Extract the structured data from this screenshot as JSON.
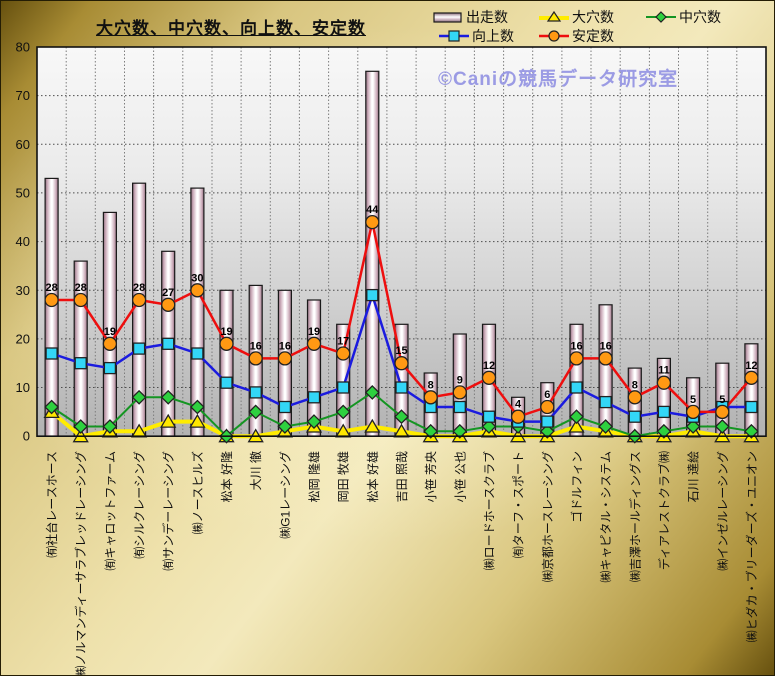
{
  "title": "大穴数、中穴数、向上数、安定数",
  "watermark": "©Caniの競馬データ研究室",
  "chart_data": {
    "type": "bar+line combo",
    "title": "大穴数、中穴数、向上数、安定数",
    "categories": [
      "㈲社台レースホース",
      "㈱ノルマンディーサラブレッドレーシング",
      "㈲キャロットファーム",
      "㈲シルクレーシング",
      "㈲サンデーレーシング",
      "㈱ノースヒルズ",
      "松本 好隆",
      "大川 徹",
      "㈱G1レーシング",
      "松岡 隆雄",
      "岡田 牧雄",
      "松本 好雄",
      "吉田 照哉",
      "小笹 芳央",
      "小笹 公也",
      "㈱ロードホースクラブ",
      "㈲ターフ・スポート",
      "㈱京都ホースレーシング",
      "ゴドルフィン",
      "㈱キャピタル・システム",
      "㈱吉澤ホールディングス",
      "ディアレストクラブ㈱",
      "石川 達絵",
      "㈱インゼルレーシング",
      "㈱ヒダカ・ブリーダーズ・ユニオン"
    ],
    "series": [
      {
        "name": "出走数",
        "kind": "bar",
        "marker": "bar",
        "fill_center": "#ffffff",
        "fill_edge": "#8e6e7e",
        "edge": "#1a1a1a",
        "values": [
          53,
          36,
          46,
          52,
          38,
          51,
          30,
          31,
          30,
          28,
          23,
          75,
          23,
          13,
          21,
          23,
          8,
          11,
          23,
          27,
          14,
          16,
          12,
          15,
          19
        ]
      },
      {
        "name": "大穴数",
        "kind": "line",
        "marker": "triangle",
        "line_color": "#ffec00",
        "marker_color": "#ffe800",
        "line_width": 4,
        "values": [
          5,
          0,
          1,
          1,
          3,
          3,
          0,
          0,
          1,
          2,
          1,
          2,
          1,
          0,
          0,
          1,
          0,
          0,
          2,
          1,
          0,
          0,
          1,
          0,
          0
        ]
      },
      {
        "name": "中穴数",
        "kind": "line",
        "marker": "diamond",
        "line_color": "#149522",
        "marker_color": "#2ed13f",
        "line_width": 2,
        "values": [
          6,
          2,
          2,
          8,
          8,
          6,
          0,
          5,
          2,
          3,
          5,
          9,
          4,
          1,
          1,
          2,
          2,
          1,
          4,
          2,
          0,
          1,
          2,
          2,
          1
        ]
      },
      {
        "name": "向上数",
        "kind": "line",
        "marker": "square",
        "line_color": "#1b1bdf",
        "marker_color": "#33d6f6",
        "line_width": 2.5,
        "values": [
          17,
          15,
          14,
          18,
          19,
          17,
          11,
          9,
          6,
          8,
          10,
          29,
          10,
          6,
          6,
          4,
          3,
          3,
          10,
          7,
          4,
          5,
          4,
          6,
          6
        ]
      },
      {
        "name": "安定数",
        "kind": "line",
        "marker": "circle",
        "line_color": "#ee0e0e",
        "marker_color": "#ff9913",
        "line_width": 2.5,
        "data_labels": true,
        "values": [
          28,
          28,
          19,
          28,
          27,
          30,
          19,
          16,
          16,
          19,
          17,
          44,
          15,
          8,
          9,
          12,
          4,
          6,
          16,
          16,
          8,
          11,
          5,
          5,
          12
        ]
      }
    ],
    "ylim": [
      0,
      80
    ],
    "ytick_step": 10,
    "grid": true,
    "legend_position": "top-right"
  }
}
